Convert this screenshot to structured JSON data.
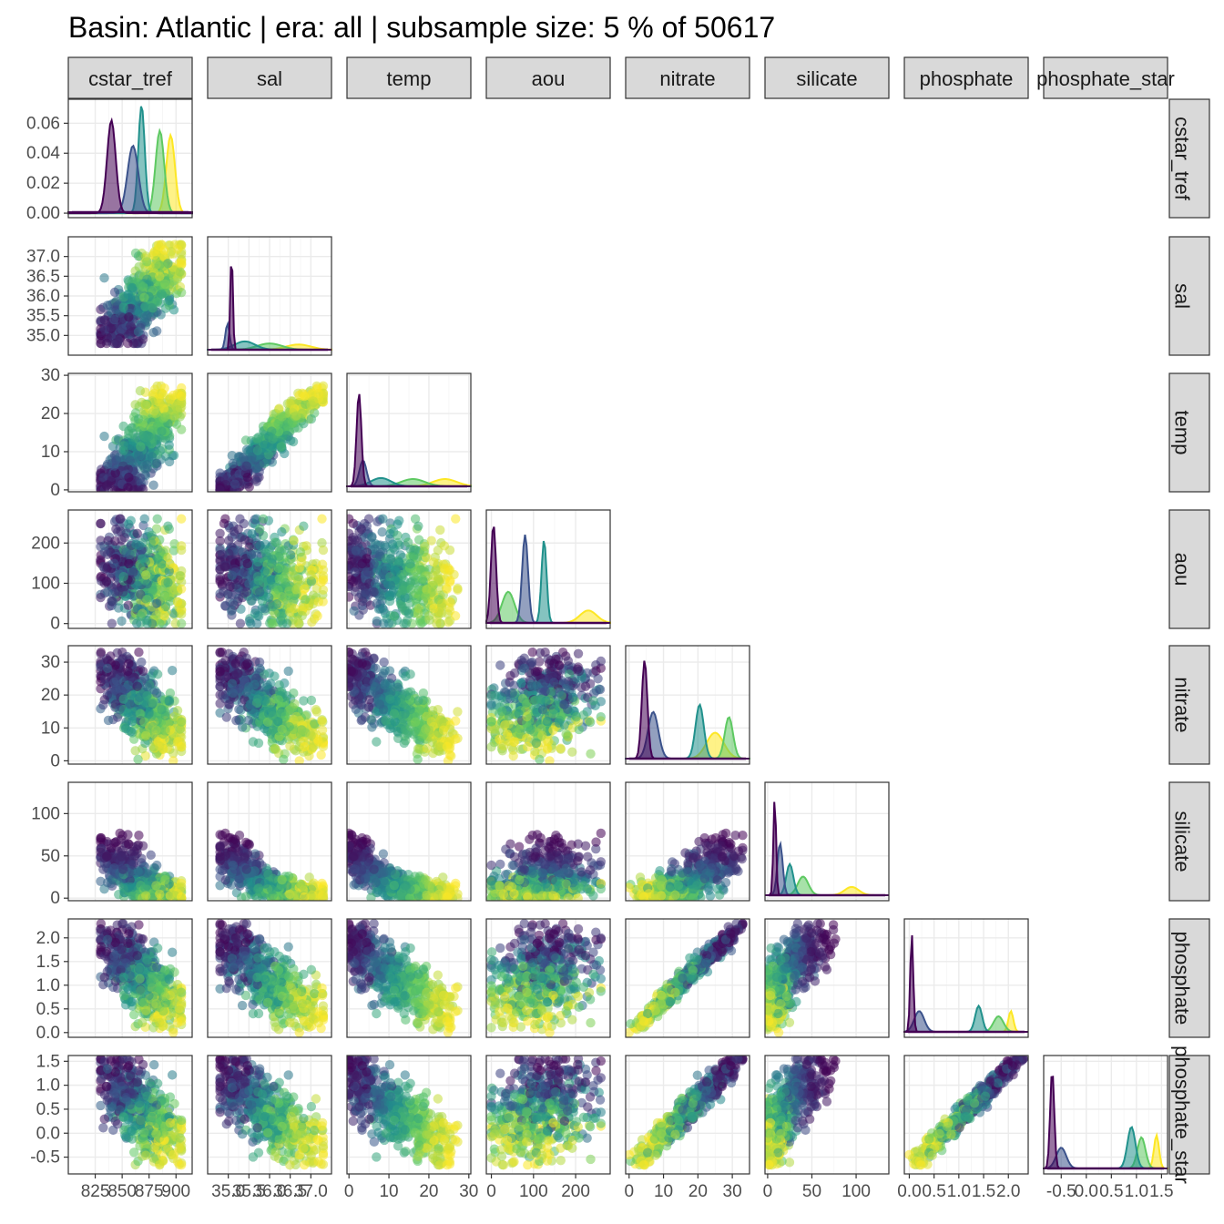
{
  "title": "Basin: Atlantic | era: all | subsample size: 5 % of 50617",
  "chart_data": {
    "type": "scatter",
    "layout": "pairs-matrix",
    "color_scale": "viridis",
    "colors": [
      "#440154",
      "#3b528b",
      "#21918c",
      "#5ec962",
      "#fde725"
    ],
    "variables": [
      {
        "name": "cstar_tref",
        "strip": "cstar_tref",
        "range": [
          800,
          915
        ],
        "ticks": [
          825,
          850,
          875,
          900
        ],
        "tick_labels": [
          "825",
          "850",
          "875",
          "900"
        ]
      },
      {
        "name": "sal",
        "strip": "sal",
        "range": [
          34.5,
          37.5
        ],
        "ticks": [
          35.0,
          35.5,
          36.0,
          36.5,
          37.0
        ],
        "tick_labels": [
          "35.0",
          "35.5",
          "36.0",
          "36.5",
          "37.0"
        ]
      },
      {
        "name": "temp",
        "strip": "temp",
        "range": [
          -0.5,
          30.5
        ],
        "ticks": [
          0,
          10,
          20,
          30
        ],
        "tick_labels": [
          "0",
          "10",
          "20",
          "30"
        ]
      },
      {
        "name": "aou",
        "strip": "aou",
        "range": [
          -12,
          282
        ],
        "ticks": [
          0,
          100,
          200
        ],
        "tick_labels": [
          "0",
          "100",
          "200"
        ]
      },
      {
        "name": "nitrate",
        "strip": "nitrate",
        "range": [
          -1,
          35
        ],
        "ticks": [
          0,
          10,
          20,
          30
        ],
        "tick_labels": [
          "0",
          "10",
          "20",
          "30"
        ]
      },
      {
        "name": "silicate",
        "strip": "silicate",
        "range": [
          -3,
          137
        ],
        "ticks": [
          0,
          50,
          100
        ],
        "tick_labels": [
          "0",
          "50",
          "100"
        ]
      },
      {
        "name": "phosphate",
        "strip": "phosphate",
        "range": [
          -0.1,
          2.4
        ],
        "ticks": [
          0.0,
          0.5,
          1.0,
          1.5,
          2.0
        ],
        "tick_labels": [
          "0.0",
          "0.5",
          "1.0",
          "1.5",
          "2.0"
        ]
      },
      {
        "name": "phosphate_star",
        "strip": "phosphate_star",
        "range": [
          -0.85,
          1.62
        ],
        "ticks": [
          -0.5,
          0.0,
          0.5,
          1.0,
          1.5
        ],
        "tick_labels": [
          "-0.5",
          "0.0",
          "0.5",
          "1.0",
          "1.5"
        ]
      }
    ],
    "diagonal_density_y": {
      "range": [
        -0.003,
        0.076
      ],
      "ticks": [
        0.0,
        0.02,
        0.04,
        0.06
      ],
      "tick_labels": [
        "0.00",
        "0.02",
        "0.04",
        "0.06"
      ]
    },
    "diagonal_density_peaks": [
      [
        [
          840,
          0.062,
          4
        ],
        [
          860,
          0.045,
          5
        ],
        [
          868,
          0.072,
          3
        ],
        [
          885,
          0.055,
          4
        ],
        [
          895,
          0.052,
          4
        ]
      ],
      [
        [
          35.08,
          0.95,
          0.03
        ],
        [
          34.98,
          0.25,
          0.05
        ],
        [
          35.4,
          0.08,
          0.25
        ],
        [
          36.0,
          0.06,
          0.3
        ],
        [
          36.7,
          0.05,
          0.3
        ]
      ],
      [
        [
          2.5,
          0.9,
          0.6
        ],
        [
          3.5,
          0.25,
          0.9
        ],
        [
          8,
          0.08,
          2.5
        ],
        [
          16,
          0.07,
          3
        ],
        [
          24,
          0.07,
          3
        ]
      ],
      [
        [
          5,
          0.95,
          6
        ],
        [
          80,
          0.85,
          7
        ],
        [
          125,
          0.8,
          6
        ],
        [
          40,
          0.3,
          15
        ],
        [
          230,
          0.12,
          20
        ]
      ],
      [
        [
          4.5,
          0.95,
          0.8
        ],
        [
          7,
          0.45,
          1.5
        ],
        [
          20.5,
          0.52,
          1.2
        ],
        [
          29,
          0.4,
          1.2
        ],
        [
          25,
          0.25,
          2.5
        ]
      ],
      [
        [
          8,
          0.95,
          1.5
        ],
        [
          14,
          0.5,
          3
        ],
        [
          25,
          0.3,
          4
        ],
        [
          40,
          0.18,
          6
        ],
        [
          95,
          0.08,
          8
        ]
      ],
      [
        [
          0.05,
          0.95,
          0.03
        ],
        [
          0.2,
          0.2,
          0.1
        ],
        [
          1.4,
          0.25,
          0.07
        ],
        [
          1.8,
          0.15,
          0.1
        ],
        [
          2.05,
          0.2,
          0.05
        ]
      ],
      [
        [
          -0.68,
          0.95,
          0.04
        ],
        [
          -0.5,
          0.2,
          0.1
        ],
        [
          0.9,
          0.4,
          0.08
        ],
        [
          1.1,
          0.3,
          0.08
        ],
        [
          1.4,
          0.32,
          0.05
        ]
      ]
    ]
  }
}
